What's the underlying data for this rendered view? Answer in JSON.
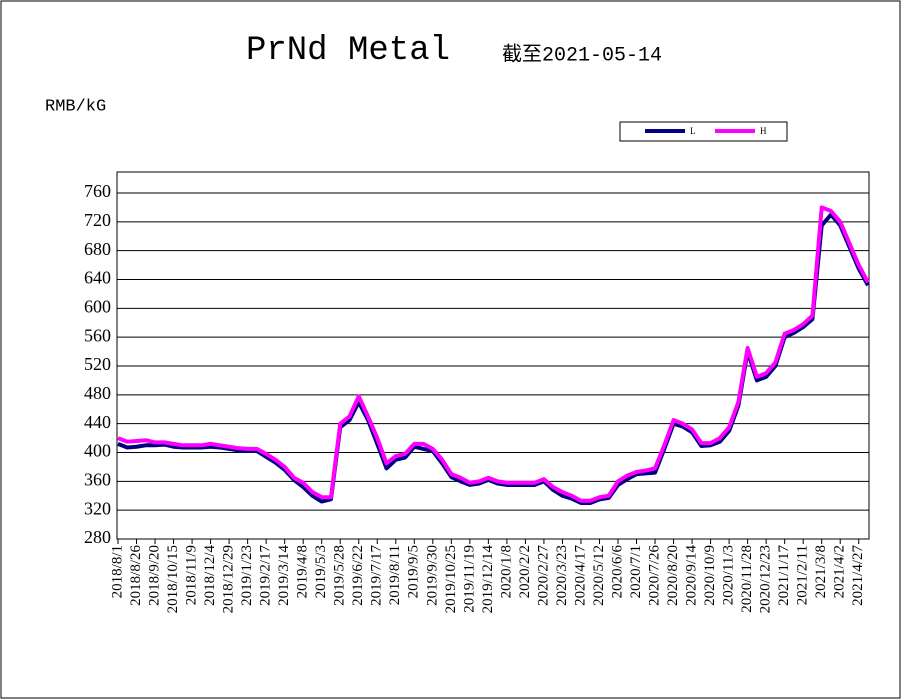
{
  "chart_data": {
    "type": "line",
    "title": "PrNd Metal",
    "subtitle": "截至2021-05-14",
    "y_label": "RMB/kG",
    "categories": [
      "2018/8/1",
      null,
      "2018/8/26",
      null,
      "2018/9/20",
      null,
      "2018/10/15",
      null,
      "2018/11/9",
      null,
      "2018/12/4",
      null,
      "2018/12/29",
      null,
      "2019/1/23",
      null,
      "2019/2/17",
      null,
      "2019/3/14",
      null,
      "2019/4/8",
      null,
      "2019/5/3",
      null,
      "2019/5/28",
      null,
      "2019/6/22",
      null,
      "2019/7/17",
      null,
      "2019/8/11",
      null,
      "2019/9/5",
      null,
      "2019/9/30",
      null,
      "2019/10/25",
      null,
      "2019/11/19",
      null,
      "2019/12/14",
      null,
      "2020/1/8",
      null,
      "2020/2/2",
      null,
      "2020/2/27",
      null,
      "2020/3/23",
      null,
      "2020/4/17",
      null,
      "2020/5/12",
      null,
      "2020/6/6",
      null,
      "2020/7/1",
      null,
      "2020/7/26",
      null,
      "2020/8/20",
      null,
      "2020/9/14",
      null,
      "2020/10/9",
      null,
      "2020/11/3",
      null,
      "2020/11/28",
      null,
      "2020/12/23",
      null,
      "2021/1/17",
      null,
      "2021/2/11",
      null,
      "2021/3/8",
      null,
      "2021/4/2",
      null,
      "2021/4/27",
      null
    ],
    "series": [
      {
        "name": "L",
        "color": "#000080",
        "values": [
          412,
          407,
          408,
          410,
          410,
          411,
          408,
          407,
          407,
          407,
          408,
          407,
          405,
          403,
          402,
          402,
          394,
          386,
          376,
          362,
          352,
          340,
          332,
          335,
          435,
          445,
          470,
          445,
          412,
          378,
          390,
          393,
          408,
          405,
          402,
          385,
          366,
          360,
          355,
          357,
          362,
          357,
          355,
          355,
          355,
          355,
          360,
          348,
          340,
          336,
          330,
          330,
          335,
          337,
          355,
          363,
          370,
          371,
          372,
          405,
          440,
          436,
          428,
          409,
          410,
          415,
          430,
          465,
          540,
          500,
          505,
          520,
          560,
          566,
          574,
          585,
          715,
          730,
          715,
          685,
          655,
          632
        ]
      },
      {
        "name": "H",
        "color": "#ff00ff",
        "values": [
          420,
          415,
          416,
          417,
          414,
          414,
          412,
          410,
          410,
          410,
          412,
          410,
          408,
          406,
          405,
          405,
          398,
          390,
          380,
          365,
          358,
          345,
          338,
          338,
          440,
          450,
          478,
          450,
          420,
          385,
          395,
          398,
          412,
          412,
          405,
          390,
          370,
          365,
          358,
          360,
          365,
          360,
          358,
          358,
          358,
          358,
          363,
          352,
          345,
          340,
          333,
          333,
          338,
          340,
          360,
          368,
          373,
          375,
          378,
          410,
          445,
          440,
          432,
          413,
          413,
          420,
          435,
          470,
          545,
          505,
          510,
          525,
          565,
          570,
          578,
          590,
          740,
          735,
          720,
          690,
          660,
          636
        ]
      }
    ],
    "ylim": [
      280,
      760
    ],
    "yticks": [
      280,
      320,
      360,
      400,
      440,
      480,
      520,
      560,
      600,
      640,
      680,
      720,
      760
    ],
    "grid": true,
    "legend": "top-right"
  }
}
